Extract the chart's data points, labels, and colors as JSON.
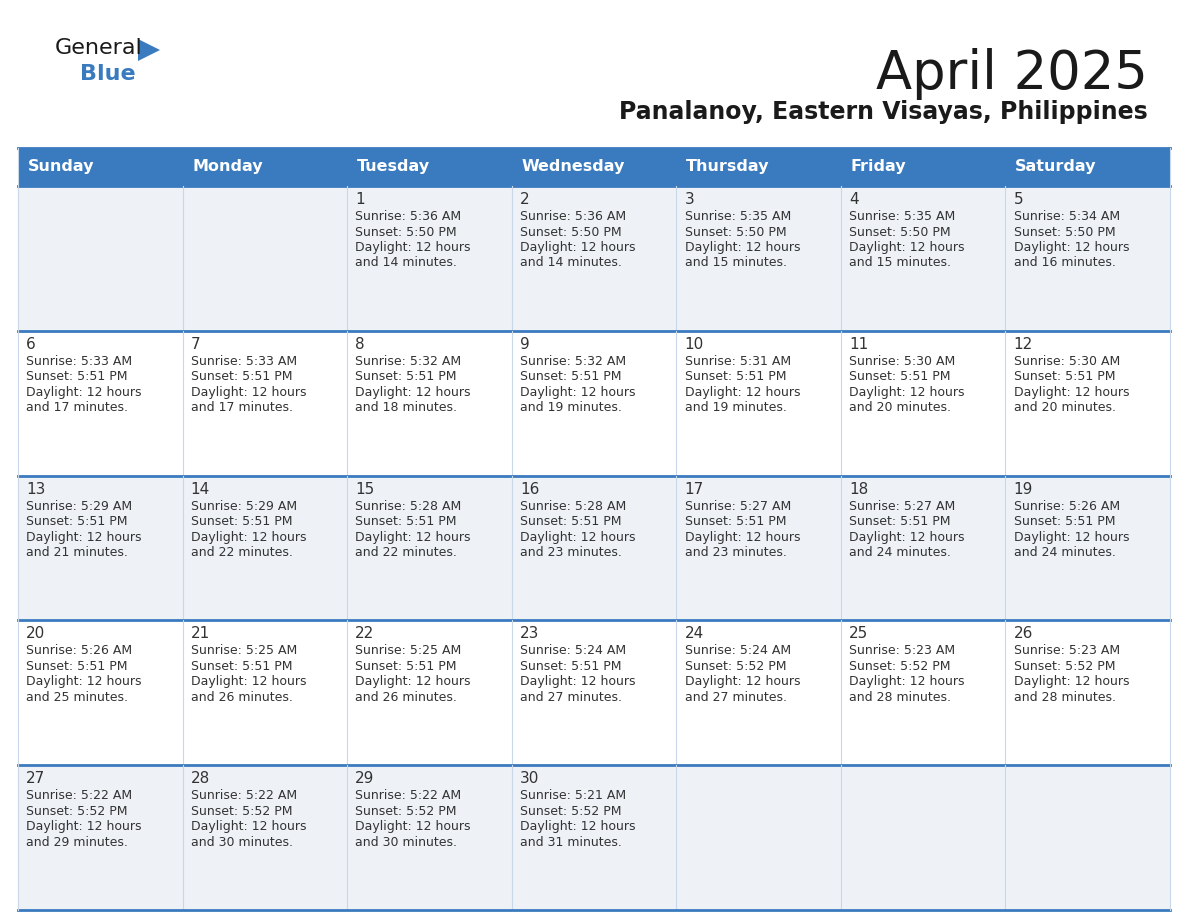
{
  "title": "April 2025",
  "subtitle": "Panalanoy, Eastern Visayas, Philippines",
  "header_bg_color": "#3a7abf",
  "header_text_color": "#ffffff",
  "row_bg_even": "#eef2f7",
  "row_bg_odd": "#ffffff",
  "border_color": "#3a7abf",
  "border_color_light": "#c8d8e8",
  "day_names": [
    "Sunday",
    "Monday",
    "Tuesday",
    "Wednesday",
    "Thursday",
    "Friday",
    "Saturday"
  ],
  "title_color": "#1a1a1a",
  "subtitle_color": "#1a1a1a",
  "cell_text_color": "#333333",
  "day_num_color": "#333333",
  "logo_general_color": "#1a1a1a",
  "logo_blue_color": "#3a7abf",
  "logo_triangle_color": "#3a7abf",
  "calendar": [
    [
      {
        "day": 0,
        "sunrise": "",
        "sunset": "",
        "daylight_suffix": ""
      },
      {
        "day": 0,
        "sunrise": "",
        "sunset": "",
        "daylight_suffix": ""
      },
      {
        "day": 1,
        "sunrise": "5:36 AM",
        "sunset": "5:50 PM",
        "daylight_suffix": "and 14 minutes."
      },
      {
        "day": 2,
        "sunrise": "5:36 AM",
        "sunset": "5:50 PM",
        "daylight_suffix": "and 14 minutes."
      },
      {
        "day": 3,
        "sunrise": "5:35 AM",
        "sunset": "5:50 PM",
        "daylight_suffix": "and 15 minutes."
      },
      {
        "day": 4,
        "sunrise": "5:35 AM",
        "sunset": "5:50 PM",
        "daylight_suffix": "and 15 minutes."
      },
      {
        "day": 5,
        "sunrise": "5:34 AM",
        "sunset": "5:50 PM",
        "daylight_suffix": "and 16 minutes."
      }
    ],
    [
      {
        "day": 6,
        "sunrise": "5:33 AM",
        "sunset": "5:51 PM",
        "daylight_suffix": "and 17 minutes."
      },
      {
        "day": 7,
        "sunrise": "5:33 AM",
        "sunset": "5:51 PM",
        "daylight_suffix": "and 17 minutes."
      },
      {
        "day": 8,
        "sunrise": "5:32 AM",
        "sunset": "5:51 PM",
        "daylight_suffix": "and 18 minutes."
      },
      {
        "day": 9,
        "sunrise": "5:32 AM",
        "sunset": "5:51 PM",
        "daylight_suffix": "and 19 minutes."
      },
      {
        "day": 10,
        "sunrise": "5:31 AM",
        "sunset": "5:51 PM",
        "daylight_suffix": "and 19 minutes."
      },
      {
        "day": 11,
        "sunrise": "5:30 AM",
        "sunset": "5:51 PM",
        "daylight_suffix": "and 20 minutes."
      },
      {
        "day": 12,
        "sunrise": "5:30 AM",
        "sunset": "5:51 PM",
        "daylight_suffix": "and 20 minutes."
      }
    ],
    [
      {
        "day": 13,
        "sunrise": "5:29 AM",
        "sunset": "5:51 PM",
        "daylight_suffix": "and 21 minutes."
      },
      {
        "day": 14,
        "sunrise": "5:29 AM",
        "sunset": "5:51 PM",
        "daylight_suffix": "and 22 minutes."
      },
      {
        "day": 15,
        "sunrise": "5:28 AM",
        "sunset": "5:51 PM",
        "daylight_suffix": "and 22 minutes."
      },
      {
        "day": 16,
        "sunrise": "5:28 AM",
        "sunset": "5:51 PM",
        "daylight_suffix": "and 23 minutes."
      },
      {
        "day": 17,
        "sunrise": "5:27 AM",
        "sunset": "5:51 PM",
        "daylight_suffix": "and 23 minutes."
      },
      {
        "day": 18,
        "sunrise": "5:27 AM",
        "sunset": "5:51 PM",
        "daylight_suffix": "and 24 minutes."
      },
      {
        "day": 19,
        "sunrise": "5:26 AM",
        "sunset": "5:51 PM",
        "daylight_suffix": "and 24 minutes."
      }
    ],
    [
      {
        "day": 20,
        "sunrise": "5:26 AM",
        "sunset": "5:51 PM",
        "daylight_suffix": "and 25 minutes."
      },
      {
        "day": 21,
        "sunrise": "5:25 AM",
        "sunset": "5:51 PM",
        "daylight_suffix": "and 26 minutes."
      },
      {
        "day": 22,
        "sunrise": "5:25 AM",
        "sunset": "5:51 PM",
        "daylight_suffix": "and 26 minutes."
      },
      {
        "day": 23,
        "sunrise": "5:24 AM",
        "sunset": "5:51 PM",
        "daylight_suffix": "and 27 minutes."
      },
      {
        "day": 24,
        "sunrise": "5:24 AM",
        "sunset": "5:52 PM",
        "daylight_suffix": "and 27 minutes."
      },
      {
        "day": 25,
        "sunrise": "5:23 AM",
        "sunset": "5:52 PM",
        "daylight_suffix": "and 28 minutes."
      },
      {
        "day": 26,
        "sunrise": "5:23 AM",
        "sunset": "5:52 PM",
        "daylight_suffix": "and 28 minutes."
      }
    ],
    [
      {
        "day": 27,
        "sunrise": "5:22 AM",
        "sunset": "5:52 PM",
        "daylight_suffix": "and 29 minutes."
      },
      {
        "day": 28,
        "sunrise": "5:22 AM",
        "sunset": "5:52 PM",
        "daylight_suffix": "and 30 minutes."
      },
      {
        "day": 29,
        "sunrise": "5:22 AM",
        "sunset": "5:52 PM",
        "daylight_suffix": "and 30 minutes."
      },
      {
        "day": 30,
        "sunrise": "5:21 AM",
        "sunset": "5:52 PM",
        "daylight_suffix": "and 31 minutes."
      },
      {
        "day": 0,
        "sunrise": "",
        "sunset": "",
        "daylight_suffix": ""
      },
      {
        "day": 0,
        "sunrise": "",
        "sunset": "",
        "daylight_suffix": ""
      },
      {
        "day": 0,
        "sunrise": "",
        "sunset": "",
        "daylight_suffix": ""
      }
    ]
  ]
}
